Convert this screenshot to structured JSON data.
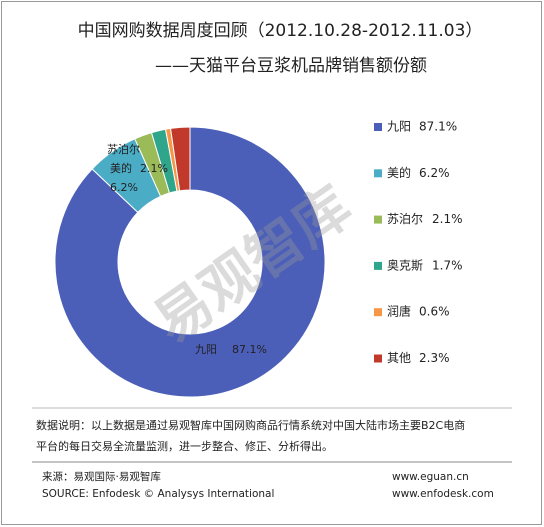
{
  "chart_data": {
    "type": "pie",
    "title": "中国网购数据周度回顾（2012.10.28-2012.11.03）",
    "subtitle": "——天猫平台豆浆机品牌销售额份额",
    "categories": [
      "九阳",
      "美的",
      "苏泊尔",
      "奥克斯",
      "润唐",
      "其他"
    ],
    "values": [
      87.1,
      6.2,
      2.1,
      1.7,
      0.6,
      2.3
    ],
    "value_labels": [
      "87.1%",
      "6.2%",
      "2.1%",
      "1.7%",
      "0.6%",
      "2.3%"
    ],
    "colors": [
      "#4c5fb8",
      "#4bacc6",
      "#9bbb59",
      "#2fa58c",
      "#f79646",
      "#c0392b"
    ],
    "donut": true,
    "legend": "right"
  },
  "watermark": "易观智库",
  "note": [
    "数据说明：以上数据是通过易观智库中国网购商品行情系统对中国大陆市场主要B2C电商",
    "平台的每日交易全流量监测，进一步整合、修正、分析得出。"
  ],
  "source": [
    "来源：易观国际·易观智库",
    "SOURCE: Enfodesk © Analysys International"
  ],
  "links": [
    "www.eguan.cn",
    "www.enfodesk.com"
  ]
}
